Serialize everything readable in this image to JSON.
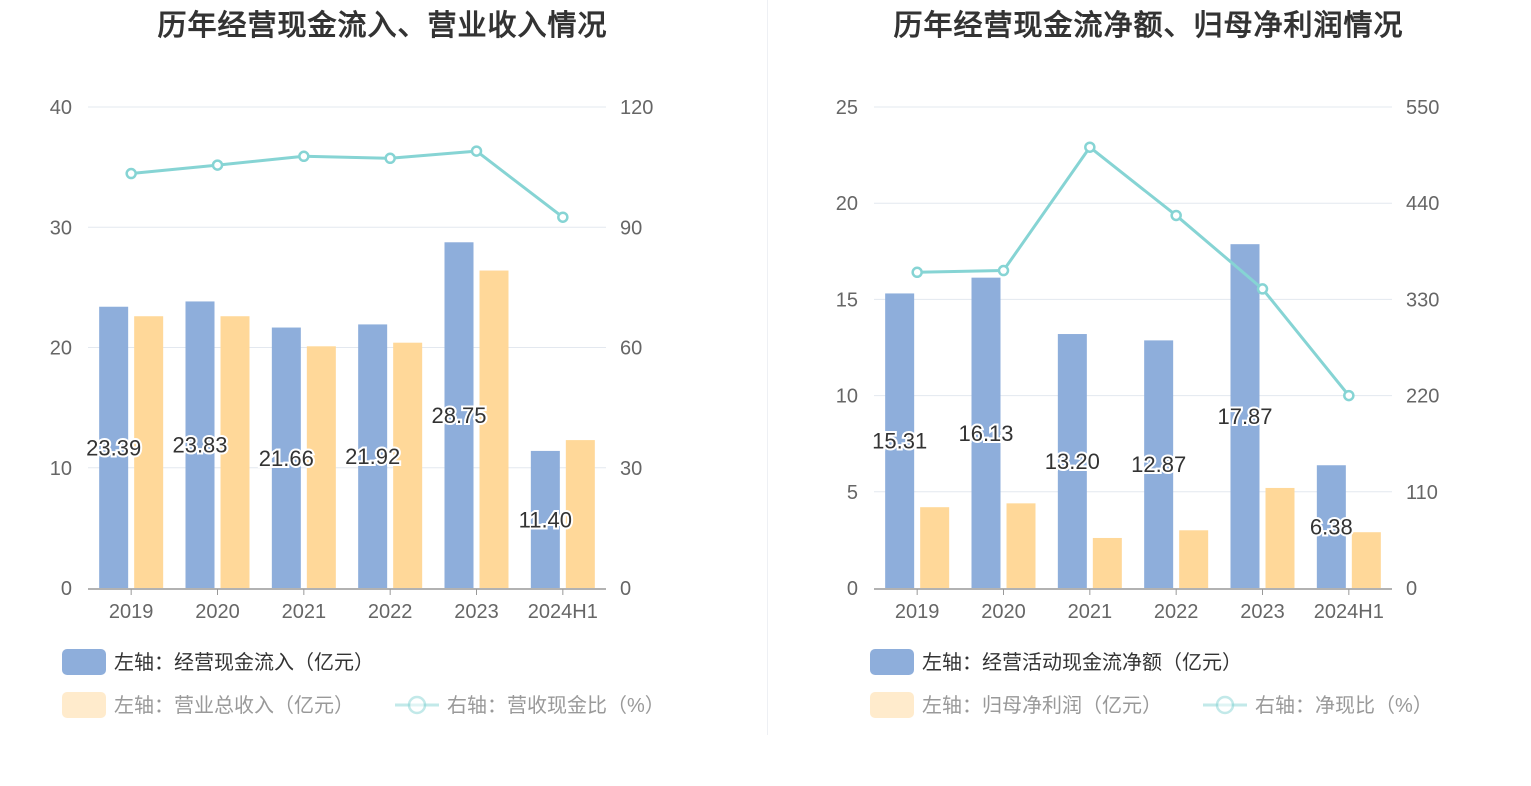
{
  "chart_data": [
    {
      "type": "bar",
      "title": "历年经营现金流入、营业收入情况",
      "categories": [
        "2019",
        "2020",
        "2021",
        "2022",
        "2023",
        "2024H1"
      ],
      "left_axis": {
        "ylim": [
          0,
          40
        ],
        "ticks": [
          "0",
          "10",
          "20",
          "30",
          "40"
        ]
      },
      "right_axis": {
        "ylim": [
          0,
          120
        ],
        "ticks": [
          "0",
          "30",
          "60",
          "90",
          "120"
        ]
      },
      "series": [
        {
          "name": "左轴：经营现金流入（亿元）",
          "axis": "left",
          "kind": "bar",
          "color": "#8eaedb",
          "values": [
            23.39,
            23.83,
            21.66,
            21.92,
            28.75,
            11.4
          ],
          "labels": [
            "23.39",
            "23.83",
            "21.66",
            "21.92",
            "28.75",
            "11.40"
          ]
        },
        {
          "name": "左轴：营业总收入（亿元）",
          "axis": "left",
          "kind": "bar",
          "color": "#ffd899",
          "values": [
            22.6,
            22.6,
            20.1,
            20.4,
            26.4,
            12.3
          ]
        },
        {
          "name": "右轴：营收现金比（%）",
          "axis": "right",
          "kind": "line",
          "color": "#86d4d4",
          "values": [
            103.4,
            105.5,
            107.7,
            107.2,
            109.0,
            92.5
          ]
        }
      ],
      "grid": true,
      "legend_position": "bottom"
    },
    {
      "type": "bar",
      "title": "历年经营现金流净额、归母净利润情况",
      "categories": [
        "2019",
        "2020",
        "2021",
        "2022",
        "2023",
        "2024H1"
      ],
      "left_axis": {
        "ylim": [
          0,
          25
        ],
        "ticks": [
          "0",
          "5",
          "10",
          "15",
          "20",
          "25"
        ]
      },
      "right_axis": {
        "ylim": [
          0,
          550
        ],
        "ticks": [
          "0",
          "110",
          "220",
          "330",
          "440",
          "550"
        ]
      },
      "series": [
        {
          "name": "左轴：经营活动现金流净额（亿元）",
          "axis": "left",
          "kind": "bar",
          "color": "#8eaedb",
          "values": [
            15.31,
            16.13,
            13.2,
            12.87,
            17.87,
            6.38
          ],
          "labels": [
            "15.31",
            "16.13",
            "13.20",
            "12.87",
            "17.87",
            "6.38"
          ]
        },
        {
          "name": "左轴：归母净利润（亿元）",
          "axis": "left",
          "kind": "bar",
          "color": "#ffd899",
          "values": [
            4.2,
            4.4,
            2.6,
            3.0,
            5.2,
            2.9
          ]
        },
        {
          "name": "右轴：净现比（%）",
          "axis": "right",
          "kind": "line",
          "color": "#86d4d4",
          "values": [
            361,
            363,
            504,
            426,
            342,
            220
          ]
        }
      ],
      "grid": true,
      "legend_position": "bottom"
    }
  ]
}
